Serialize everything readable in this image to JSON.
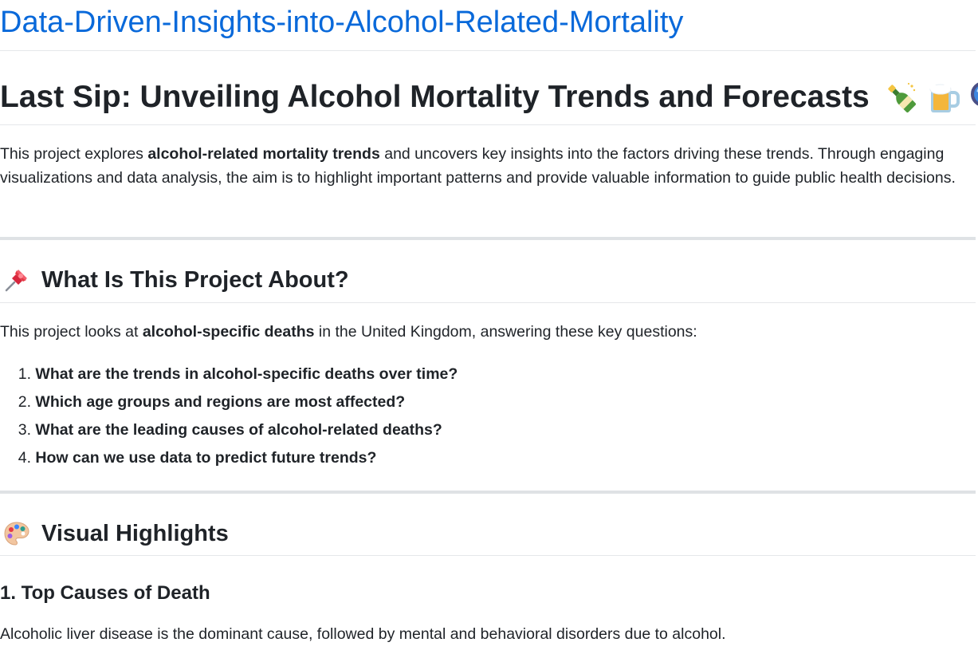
{
  "repo": {
    "title": "Data-Driven-Insights-into-Alcohol-Related-Mortality"
  },
  "header": {
    "title": "Last Sip: Unveiling Alcohol Mortality Trends and Forecasts",
    "emoji_icons": [
      "champagne-bottle-icon",
      "beer-mug-icon",
      "magnifying-glass-icon"
    ]
  },
  "intro": {
    "part1": "This project explores ",
    "bold": "alcohol-related mortality trends",
    "part2": " and uncovers key insights into the factors driving these trends. Through engaging visualizations and data analysis, the aim is to highlight important patterns and provide valuable information to guide public health decisions."
  },
  "about": {
    "icon": "pushpin-icon",
    "heading": "What Is This Project About?",
    "lead_part1": "This project looks at ",
    "lead_bold": "alcohol-specific deaths",
    "lead_part2": " in the United Kingdom, answering these key questions:",
    "questions": [
      {
        "num": "1.",
        "text": "What are the trends in alcohol-specific deaths over time?"
      },
      {
        "num": "2.",
        "text": "Which age groups and regions are most affected?"
      },
      {
        "num": "3.",
        "text": "What are the leading causes of alcohol-related deaths?"
      },
      {
        "num": "4.",
        "text": "How can we use data to predict future trends?"
      }
    ]
  },
  "highlights": {
    "icon": "artist-palette-icon",
    "heading": "Visual Highlights",
    "sub_heading": "1. Top Causes of Death",
    "sub_text": "Alcoholic liver disease is the dominant cause, followed by mental and behavioral disorders due to alcohol."
  },
  "colors": {
    "link": "#0969da",
    "text": "#1f2328",
    "divider": "#dfe2e5"
  }
}
